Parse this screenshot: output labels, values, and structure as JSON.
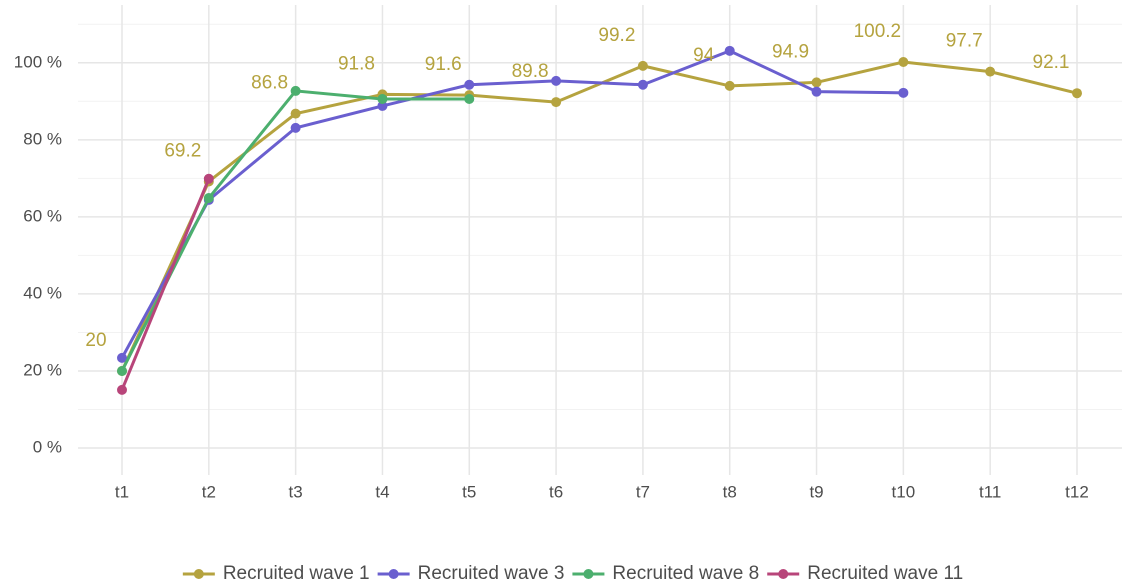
{
  "chart_data": {
    "type": "line",
    "categories": [
      "t1",
      "t2",
      "t3",
      "t4",
      "t5",
      "t6",
      "t7",
      "t8",
      "t9",
      "t10",
      "t11",
      "t12"
    ],
    "ylim": [
      -7,
      115
    ],
    "yticks": [
      {
        "value": 0,
        "label": "0 %"
      },
      {
        "value": 20,
        "label": "20 %"
      },
      {
        "value": 40,
        "label": "40 %"
      },
      {
        "value": 60,
        "label": "60 %"
      },
      {
        "value": 80,
        "label": "80 %"
      },
      {
        "value": 100,
        "label": "100 %"
      }
    ],
    "minor_yticks": [
      10,
      30,
      50,
      70,
      90,
      110
    ],
    "grid": true,
    "legend": "bottom",
    "series": [
      {
        "name": "Recruited wave 1",
        "color": "#b5a33f",
        "values": [
          20,
          69.2,
          86.8,
          91.8,
          91.6,
          89.8,
          99.2,
          94,
          94.9,
          100.2,
          97.7,
          92.1
        ]
      },
      {
        "name": "Recruited wave 3",
        "color": "#6a5fcf",
        "values": [
          23.4,
          64.4,
          83.1,
          88.8,
          94.3,
          95.3,
          94.3,
          103.1,
          92.5,
          92.2,
          null,
          null
        ]
      },
      {
        "name": "Recruited wave 8",
        "color": "#4caf6e",
        "values": [
          20,
          64.9,
          92.7,
          90.6,
          90.6,
          null,
          null,
          null,
          null,
          null,
          null,
          null
        ]
      },
      {
        "name": "Recruited wave 11",
        "color": "#b8457a",
        "values": [
          15.1,
          69.9,
          null,
          null,
          null,
          null,
          null,
          null,
          null,
          null,
          null,
          null
        ]
      }
    ],
    "labeled_series": 0
  }
}
